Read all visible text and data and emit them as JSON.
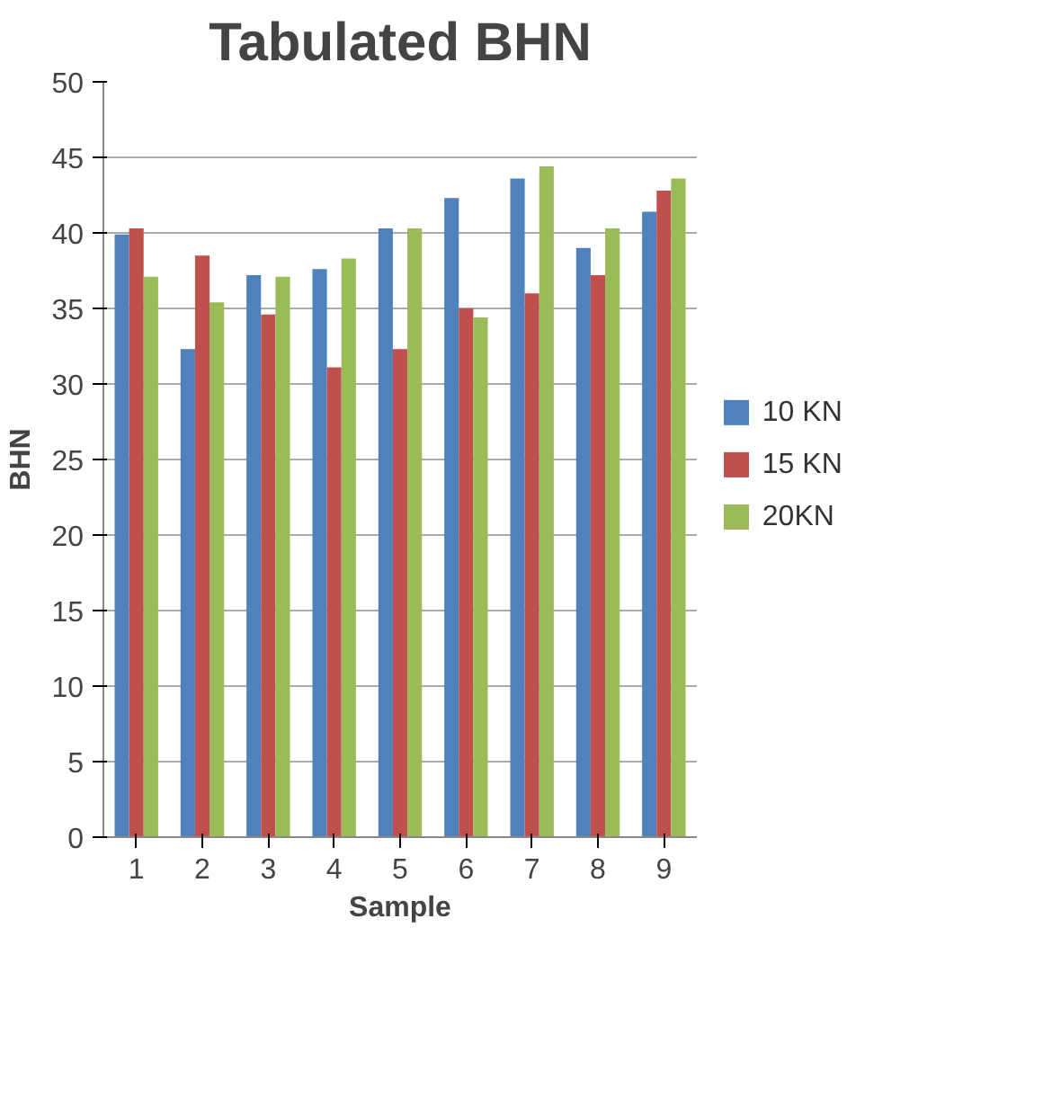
{
  "chart_data": {
    "type": "bar",
    "title": "Tabulated BHN",
    "xlabel": "Sample",
    "ylabel": "BHN",
    "categories": [
      "1",
      "2",
      "3",
      "4",
      "5",
      "6",
      "7",
      "8",
      "9"
    ],
    "series": [
      {
        "name": "10 KN",
        "color": "#4f81bd",
        "values": [
          39.9,
          32.3,
          37.2,
          37.6,
          40.3,
          42.3,
          43.6,
          39.0,
          41.4
        ]
      },
      {
        "name": "15 KN",
        "color": "#c0504d",
        "values": [
          40.3,
          38.5,
          34.6,
          31.1,
          32.3,
          35.0,
          36.0,
          37.2,
          42.8
        ]
      },
      {
        "name": "20KN",
        "color": "#9bbb59",
        "values": [
          37.1,
          35.4,
          37.1,
          38.3,
          40.3,
          34.4,
          44.4,
          40.3,
          43.6
        ]
      }
    ],
    "ylim": [
      0,
      50
    ],
    "yticks": [
      0,
      5,
      10,
      15,
      20,
      25,
      30,
      35,
      40,
      45,
      50
    ],
    "grid": "y",
    "legend": "right"
  }
}
